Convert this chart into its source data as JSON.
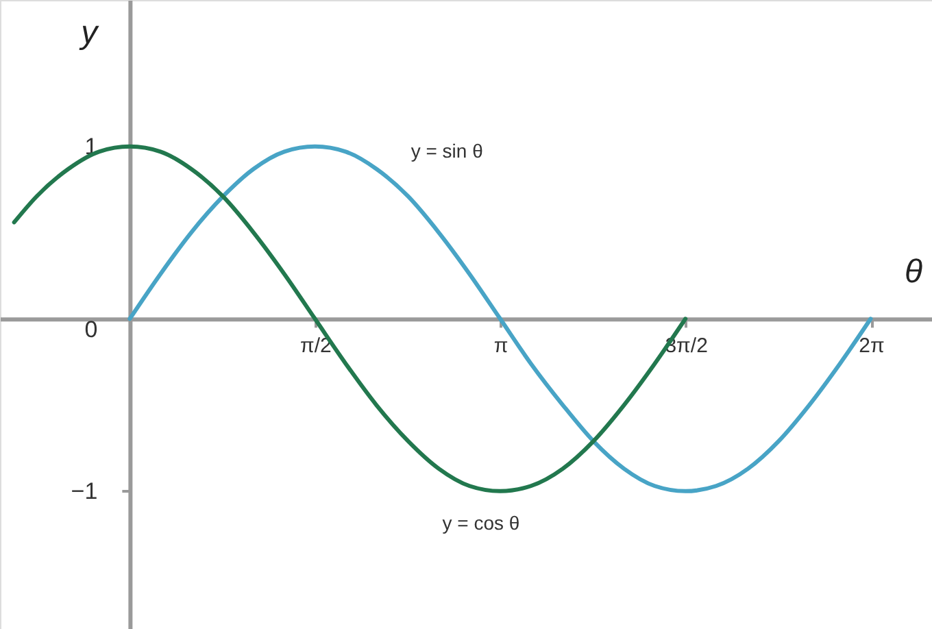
{
  "chart_data": {
    "type": "line",
    "xlabel": "θ",
    "ylabel": "y",
    "xlim": [
      -1.1,
      6.8
    ],
    "ylim": [
      -1.8,
      1.85
    ],
    "xticks": [
      {
        "value": 1.5708,
        "label": "π/2"
      },
      {
        "value": 3.1416,
        "label": "π"
      },
      {
        "value": 4.7124,
        "label": "3π/2"
      },
      {
        "value": 6.2832,
        "label": "2π"
      }
    ],
    "yticks": [
      -1,
      0,
      1
    ],
    "series": [
      {
        "name": "y = sin θ",
        "color": "#48a4c6",
        "x": [
          0,
          0.26,
          0.52,
          0.79,
          1.05,
          1.31,
          1.57,
          1.83,
          2.09,
          2.36,
          2.62,
          2.88,
          3.14,
          3.4,
          3.67,
          3.93,
          4.19,
          4.45,
          4.71,
          4.97,
          5.24,
          5.5,
          5.76,
          6.02,
          6.28
        ],
        "values": [
          0,
          0.26,
          0.5,
          0.71,
          0.87,
          0.97,
          1,
          0.97,
          0.87,
          0.71,
          0.5,
          0.26,
          0,
          -0.26,
          -0.5,
          -0.71,
          -0.87,
          -0.97,
          -1,
          -0.97,
          -0.87,
          -0.71,
          -0.5,
          -0.26,
          0
        ]
      },
      {
        "name": "y = cos θ",
        "color": "#22784e",
        "x": [
          -0.98,
          -0.79,
          -0.52,
          -0.26,
          0,
          0.26,
          0.52,
          0.79,
          1.05,
          1.31,
          1.57,
          1.83,
          2.09,
          2.36,
          2.62,
          2.88,
          3.14,
          3.4,
          3.67,
          3.93,
          4.19,
          4.45,
          4.71
        ],
        "values": [
          0.56,
          0.71,
          0.87,
          0.97,
          1,
          0.97,
          0.87,
          0.71,
          0.5,
          0.26,
          0,
          -0.26,
          -0.5,
          -0.71,
          -0.87,
          -0.97,
          -1,
          -0.97,
          -0.87,
          -0.71,
          -0.5,
          -0.26,
          0
        ]
      }
    ],
    "line_style": "solid",
    "grid": false
  }
}
